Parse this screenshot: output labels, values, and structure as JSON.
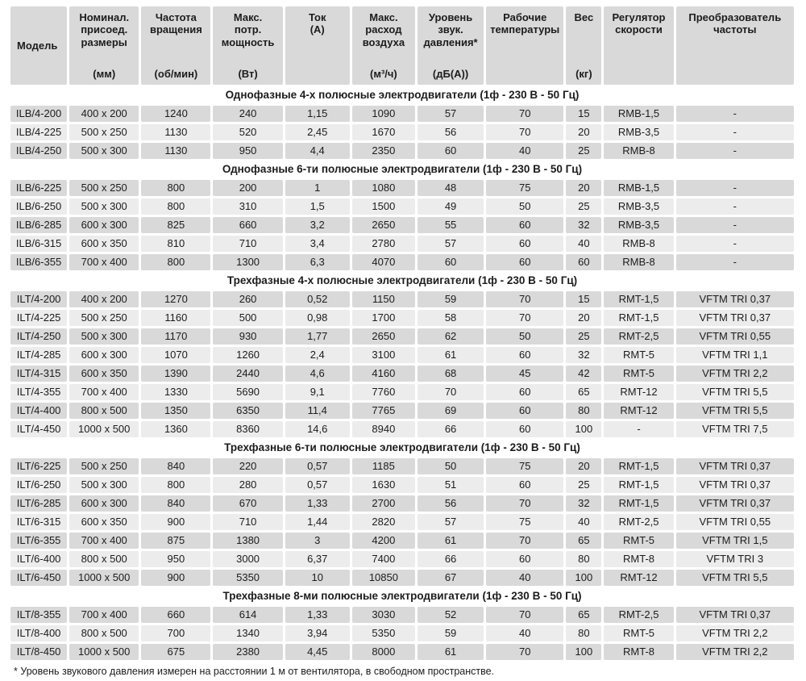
{
  "table": {
    "columns": [
      {
        "id": "model",
        "label": "Модель",
        "unit": ""
      },
      {
        "id": "dims",
        "label": "Номинал.\nприсоед.\nразмеры",
        "unit": "(мм)"
      },
      {
        "id": "rpm",
        "label": "Частота\nвращения",
        "unit": "(об/мин)"
      },
      {
        "id": "power",
        "label": "Макс.\nпотр.\nмощность",
        "unit": "(Вт)"
      },
      {
        "id": "current",
        "label": "Ток\n(А)",
        "unit": ""
      },
      {
        "id": "airflow",
        "label": "Макс.\nрасход\nвоздуха",
        "unit": "(м³/ч)"
      },
      {
        "id": "noise",
        "label": "Уровень\nзвук.\nдавления*",
        "unit": "(дБ(А))"
      },
      {
        "id": "temp",
        "label": "Рабочие\nтемпературы",
        "unit": ""
      },
      {
        "id": "weight",
        "label": "Вес",
        "unit": "(кг)"
      },
      {
        "id": "regulator",
        "label": "Регулятор\nскорости",
        "unit": ""
      },
      {
        "id": "converter",
        "label": "Преобразователь\nчастоты",
        "unit": ""
      }
    ],
    "sections": [
      {
        "title": "Однофазные 4-х полюсные электродвигатели (1ф - 230 В - 50 Гц)",
        "rows": [
          [
            "ILB/4-200",
            "400 x 200",
            "1240",
            "240",
            "1,15",
            "1090",
            "57",
            "70",
            "15",
            "RMB-1,5",
            "-"
          ],
          [
            "ILB/4-225",
            "500 x 250",
            "1130",
            "520",
            "2,45",
            "1670",
            "56",
            "70",
            "20",
            "RMB-3,5",
            "-"
          ],
          [
            "ILB/4-250",
            "500 x 300",
            "1130",
            "950",
            "4,4",
            "2350",
            "60",
            "40",
            "25",
            "RMB-8",
            "-"
          ]
        ]
      },
      {
        "title": "Однофазные 6-ти полюсные электродвигатели (1ф - 230 В - 50 Гц)",
        "rows": [
          [
            "ILB/6-225",
            "500 x 250",
            "800",
            "200",
            "1",
            "1080",
            "48",
            "75",
            "20",
            "RMB-1,5",
            "-"
          ],
          [
            "ILB/6-250",
            "500 x 300",
            "800",
            "310",
            "1,5",
            "1500",
            "49",
            "50",
            "25",
            "RMB-3,5",
            "-"
          ],
          [
            "ILB/6-285",
            "600 x 300",
            "825",
            "660",
            "3,2",
            "2650",
            "55",
            "60",
            "32",
            "RMB-3,5",
            "-"
          ],
          [
            "ILB/6-315",
            "600 x 350",
            "810",
            "710",
            "3,4",
            "2780",
            "57",
            "60",
            "40",
            "RMB-8",
            "-"
          ],
          [
            "ILB/6-355",
            "700 x 400",
            "800",
            "1300",
            "6,3",
            "4070",
            "60",
            "60",
            "60",
            "RMB-8",
            "-"
          ]
        ]
      },
      {
        "title": "Трехфазные 4-х полюсные электродвигатели (1ф - 230 В - 50 Гц)",
        "rows": [
          [
            "ILT/4-200",
            "400 x 200",
            "1270",
            "260",
            "0,52",
            "1150",
            "59",
            "70",
            "15",
            "RMT-1,5",
            "VFTM TRI 0,37"
          ],
          [
            "ILT/4-225",
            "500 x 250",
            "1160",
            "500",
            "0,98",
            "1700",
            "58",
            "70",
            "20",
            "RMT-1,5",
            "VFTM TRI 0,37"
          ],
          [
            "ILT/4-250",
            "500 x 300",
            "1170",
            "930",
            "1,77",
            "2650",
            "62",
            "50",
            "25",
            "RMT-2,5",
            "VFTM TRI 0,55"
          ],
          [
            "ILT/4-285",
            "600 x 300",
            "1070",
            "1260",
            "2,4",
            "3100",
            "61",
            "60",
            "32",
            "RMT-5",
            "VFTM TRI 1,1"
          ],
          [
            "ILT/4-315",
            "600 x 350",
            "1390",
            "2440",
            "4,6",
            "4160",
            "68",
            "45",
            "42",
            "RMT-5",
            "VFTM TRI 2,2"
          ],
          [
            "ILT/4-355",
            "700 x 400",
            "1330",
            "5690",
            "9,1",
            "7760",
            "70",
            "60",
            "65",
            "RMT-12",
            "VFTM TRI 5,5"
          ],
          [
            "ILT/4-400",
            "800 x 500",
            "1350",
            "6350",
            "11,4",
            "7765",
            "69",
            "60",
            "80",
            "RMT-12",
            "VFTM TRI 5,5"
          ],
          [
            "ILT/4-450",
            "1000 x 500",
            "1360",
            "8360",
            "14,6",
            "8940",
            "66",
            "60",
            "100",
            "-",
            "VFTM TRI 7,5"
          ]
        ]
      },
      {
        "title": "Трехфазные 6-ти полюсные электродвигатели (1ф - 230 В - 50 Гц)",
        "rows": [
          [
            "ILT/6-225",
            "500 x 250",
            "840",
            "220",
            "0,57",
            "1185",
            "50",
            "75",
            "20",
            "RMT-1,5",
            "VFTM TRI 0,37"
          ],
          [
            "ILT/6-250",
            "500 x 300",
            "800",
            "280",
            "0,57",
            "1630",
            "51",
            "60",
            "25",
            "RMT-1,5",
            "VFTM TRI 0,37"
          ],
          [
            "ILT/6-285",
            "600 x 300",
            "840",
            "670",
            "1,33",
            "2700",
            "56",
            "70",
            "32",
            "RMT-1,5",
            "VFTM TRI 0,37"
          ],
          [
            "ILT/6-315",
            "600 x 350",
            "900",
            "710",
            "1,44",
            "2820",
            "57",
            "75",
            "40",
            "RMT-2,5",
            "VFTM TRI 0,55"
          ],
          [
            "ILT/6-355",
            "700 x 400",
            "875",
            "1380",
            "3",
            "4200",
            "61",
            "70",
            "65",
            "RMT-5",
            "VFTM TRI 1,5"
          ],
          [
            "ILT/6-400",
            "800 x 500",
            "950",
            "3000",
            "6,37",
            "7400",
            "66",
            "60",
            "80",
            "RMT-8",
            "VFTM TRI 3"
          ],
          [
            "ILT/6-450",
            "1000 x 500",
            "900",
            "5350",
            "10",
            "10850",
            "67",
            "40",
            "100",
            "RMT-12",
            "VFTM TRI 5,5"
          ]
        ]
      },
      {
        "title": "Трехфазные 8-ми полюсные электродвигатели (1ф - 230 В - 50 Гц)",
        "rows": [
          [
            "ILT/8-355",
            "700 x 400",
            "660",
            "614",
            "1,33",
            "3030",
            "52",
            "70",
            "65",
            "RMT-2,5",
            "VFTM TRI 0,37"
          ],
          [
            "ILT/8-400",
            "800 x 500",
            "700",
            "1340",
            "3,94",
            "5350",
            "59",
            "40",
            "80",
            "RMT-5",
            "VFTM TRI 2,2"
          ],
          [
            "ILT/8-450",
            "1000 x 500",
            "675",
            "2380",
            "4,45",
            "8000",
            "61",
            "70",
            "100",
            "RMT-8",
            "VFTM TRI 2,2"
          ]
        ]
      }
    ],
    "footnote": "* Уровень звукового давления измерен на расстоянии 1 м от вентилятора, в свободном пространстве."
  },
  "colors": {
    "cell_dark": "#d9d9d9",
    "cell_light": "#ececec",
    "text": "#1c1c1c",
    "background": "#ffffff"
  }
}
